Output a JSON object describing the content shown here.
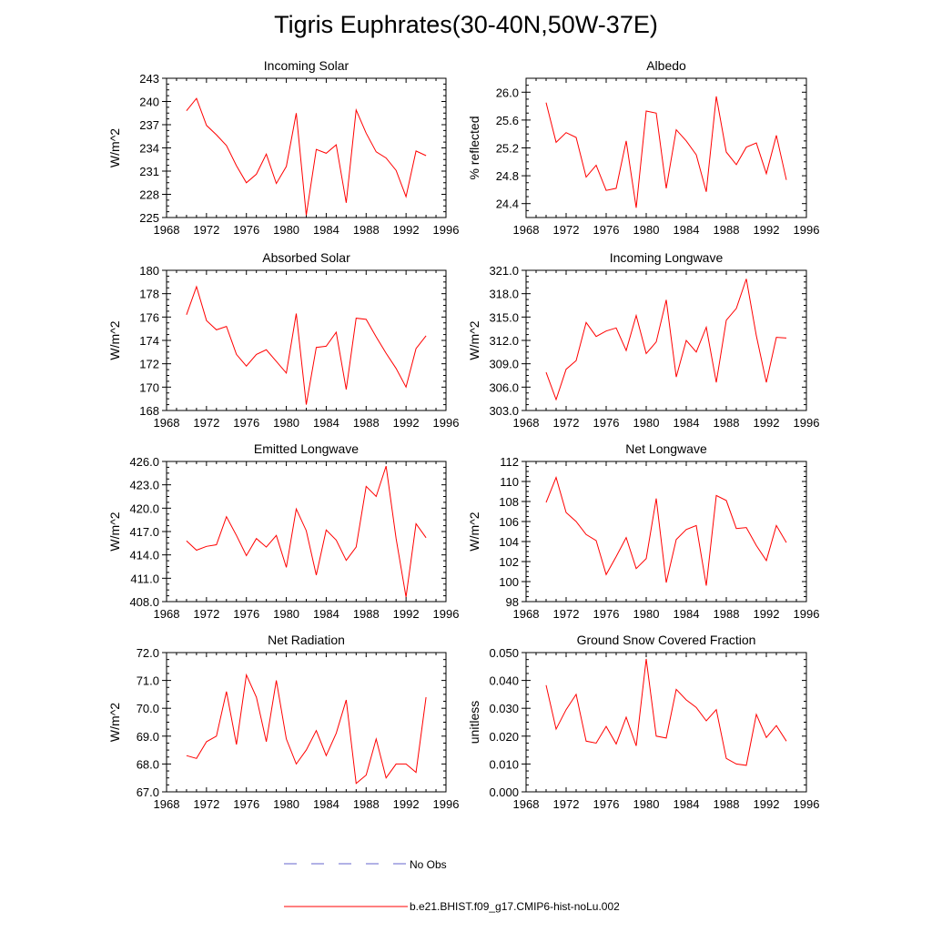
{
  "title": "Tigris Euphrates(30-40N,50W-37E)",
  "chart_data": [
    {
      "type": "line",
      "title": "Incoming Solar",
      "ylabel": "W/m^2",
      "xlabel": "",
      "xlim": [
        1968,
        1996
      ],
      "xticks": [
        "1968",
        "1972",
        "1976",
        "1980",
        "1984",
        "1988",
        "1992",
        "1996"
      ],
      "ylim": [
        225,
        243
      ],
      "yticks": [
        "225",
        "228",
        "231",
        "234",
        "237",
        "240",
        "243"
      ],
      "series": [
        {
          "name": "b.e21.BHIST.f09_g17.CMIP6-hist-noLu.002",
          "color": "#ff0000",
          "x": [
            1970,
            1971,
            1972,
            1973,
            1974,
            1975,
            1976,
            1977,
            1978,
            1979,
            1980,
            1981,
            1982,
            1983,
            1984,
            1985,
            1986,
            1987,
            1988,
            1989,
            1990,
            1991,
            1992,
            1993,
            1994
          ],
          "y": [
            238.8,
            240.4,
            236.9,
            235.7,
            234.3,
            231.7,
            229.5,
            230.6,
            233.2,
            229.4,
            231.6,
            238.5,
            225.3,
            233.8,
            233.3,
            234.4,
            226.9,
            238.9,
            235.9,
            233.5,
            232.7,
            231.1,
            227.7,
            233.6,
            233.0
          ]
        }
      ]
    },
    {
      "type": "line",
      "title": "Albedo",
      "ylabel": "% reflected",
      "xlabel": "",
      "xlim": [
        1968,
        1996
      ],
      "xticks": [
        "1968",
        "1972",
        "1976",
        "1980",
        "1984",
        "1988",
        "1992",
        "1996"
      ],
      "ylim": [
        24.2,
        26.2
      ],
      "yticks": [
        "24.4",
        "24.8",
        "25.2",
        "25.6",
        "26.0"
      ],
      "series": [
        {
          "name": "b.e21.BHIST.f09_g17.CMIP6-hist-noLu.002",
          "color": "#ff0000",
          "x": [
            1970,
            1971,
            1972,
            1973,
            1974,
            1975,
            1976,
            1977,
            1978,
            1979,
            1980,
            1981,
            1982,
            1983,
            1984,
            1985,
            1986,
            1987,
            1988,
            1989,
            1990,
            1991,
            1992,
            1993,
            1994
          ],
          "y": [
            25.85,
            25.28,
            25.42,
            25.35,
            24.78,
            24.95,
            24.59,
            24.62,
            25.3,
            24.34,
            25.73,
            25.7,
            24.62,
            25.46,
            25.3,
            25.1,
            24.57,
            25.94,
            25.14,
            24.96,
            25.21,
            25.27,
            24.83,
            25.38,
            24.74
          ]
        }
      ]
    },
    {
      "type": "line",
      "title": "Absorbed Solar",
      "ylabel": "W/m^2",
      "xlabel": "",
      "xlim": [
        1968,
        1996
      ],
      "xticks": [
        "1968",
        "1972",
        "1976",
        "1980",
        "1984",
        "1988",
        "1992",
        "1996"
      ],
      "ylim": [
        168,
        180
      ],
      "yticks": [
        "168",
        "170",
        "172",
        "174",
        "176",
        "178",
        "180"
      ],
      "series": [
        {
          "name": "b.e21.BHIST.f09_g17.CMIP6-hist-noLu.002",
          "color": "#ff0000",
          "x": [
            1970,
            1971,
            1972,
            1973,
            1974,
            1975,
            1976,
            1977,
            1978,
            1979,
            1980,
            1981,
            1982,
            1983,
            1984,
            1985,
            1986,
            1987,
            1988,
            1989,
            1990,
            1991,
            1992,
            1993,
            1994
          ],
          "y": [
            176.2,
            178.6,
            175.7,
            174.9,
            175.2,
            172.8,
            171.8,
            172.8,
            173.2,
            172.2,
            171.2,
            176.3,
            168.5,
            173.4,
            173.5,
            174.7,
            169.8,
            175.9,
            175.8,
            174.3,
            172.9,
            171.6,
            170.0,
            173.3,
            174.4
          ]
        }
      ]
    },
    {
      "type": "line",
      "title": "Incoming Longwave",
      "ylabel": "W/m^2",
      "xlabel": "",
      "xlim": [
        1968,
        1996
      ],
      "xticks": [
        "1968",
        "1972",
        "1976",
        "1980",
        "1984",
        "1988",
        "1992",
        "1996"
      ],
      "ylim": [
        303.0,
        321.0
      ],
      "yticks": [
        "303.0",
        "306.0",
        "309.0",
        "312.0",
        "315.0",
        "318.0",
        "321.0"
      ],
      "series": [
        {
          "name": "b.e21.BHIST.f09_g17.CMIP6-hist-noLu.002",
          "color": "#ff0000",
          "x": [
            1970,
            1971,
            1972,
            1973,
            1974,
            1975,
            1976,
            1977,
            1978,
            1979,
            1980,
            1981,
            1982,
            1983,
            1984,
            1985,
            1986,
            1987,
            1988,
            1989,
            1990,
            1991,
            1992,
            1993,
            1994
          ],
          "y": [
            307.9,
            304.4,
            308.3,
            309.4,
            314.3,
            312.5,
            313.2,
            313.6,
            310.7,
            315.2,
            310.3,
            311.8,
            317.2,
            307.3,
            312.0,
            310.5,
            313.7,
            306.6,
            314.6,
            316.1,
            319.9,
            312.6,
            306.6,
            312.4,
            312.3
          ]
        }
      ]
    },
    {
      "type": "line",
      "title": "Emitted Longwave",
      "ylabel": "W/m^2",
      "xlabel": "",
      "xlim": [
        1968,
        1996
      ],
      "xticks": [
        "1968",
        "1972",
        "1976",
        "1980",
        "1984",
        "1988",
        "1992",
        "1996"
      ],
      "ylim": [
        408.0,
        426.0
      ],
      "yticks": [
        "408.0",
        "411.0",
        "414.0",
        "417.0",
        "420.0",
        "423.0",
        "426.0"
      ],
      "series": [
        {
          "name": "b.e21.BHIST.f09_g17.CMIP6-hist-noLu.002",
          "color": "#ff0000",
          "x": [
            1970,
            1971,
            1972,
            1973,
            1974,
            1975,
            1976,
            1977,
            1978,
            1979,
            1980,
            1981,
            1982,
            1983,
            1984,
            1985,
            1986,
            1987,
            1988,
            1989,
            1990,
            1991,
            1992,
            1993,
            1994
          ],
          "y": [
            415.8,
            414.6,
            415.1,
            415.3,
            418.9,
            416.5,
            413.9,
            416.1,
            415.0,
            416.5,
            412.4,
            419.9,
            417.1,
            411.4,
            417.2,
            415.9,
            413.3,
            415.0,
            422.8,
            421.5,
            425.4,
            416.1,
            408.6,
            418.0,
            416.2
          ]
        }
      ]
    },
    {
      "type": "line",
      "title": "Net Longwave",
      "ylabel": "W/m^2",
      "xlabel": "",
      "xlim": [
        1968,
        1996
      ],
      "xticks": [
        "1968",
        "1972",
        "1976",
        "1980",
        "1984",
        "1988",
        "1992",
        "1996"
      ],
      "ylim": [
        98,
        112
      ],
      "yticks": [
        "98",
        "100",
        "102",
        "104",
        "106",
        "108",
        "110",
        "112"
      ],
      "series": [
        {
          "name": "b.e21.BHIST.f09_g17.CMIP6-hist-noLu.002",
          "color": "#ff0000",
          "x": [
            1970,
            1971,
            1972,
            1973,
            1974,
            1975,
            1976,
            1977,
            1978,
            1979,
            1980,
            1981,
            1982,
            1983,
            1984,
            1985,
            1986,
            1987,
            1988,
            1989,
            1990,
            1991,
            1992,
            1993,
            1994
          ],
          "y": [
            107.9,
            110.4,
            106.9,
            106.0,
            104.7,
            104.1,
            100.7,
            102.5,
            104.4,
            101.3,
            102.3,
            108.3,
            99.9,
            104.2,
            105.2,
            105.6,
            99.6,
            108.6,
            108.1,
            105.3,
            105.4,
            103.6,
            102.1,
            105.6,
            103.9
          ]
        }
      ]
    },
    {
      "type": "line",
      "title": "Net Radiation",
      "ylabel": "W/m^2",
      "xlabel": "",
      "xlim": [
        1968,
        1996
      ],
      "xticks": [
        "1968",
        "1972",
        "1976",
        "1980",
        "1984",
        "1988",
        "1992",
        "1996"
      ],
      "ylim": [
        67.0,
        72.0
      ],
      "yticks": [
        "67.0",
        "68.0",
        "69.0",
        "70.0",
        "71.0",
        "72.0"
      ],
      "series": [
        {
          "name": "b.e21.BHIST.f09_g17.CMIP6-hist-noLu.002",
          "color": "#ff0000",
          "x": [
            1970,
            1971,
            1972,
            1973,
            1974,
            1975,
            1976,
            1977,
            1978,
            1979,
            1980,
            1981,
            1982,
            1983,
            1984,
            1985,
            1986,
            1987,
            1988,
            1989,
            1990,
            1991,
            1992,
            1993,
            1994
          ],
          "y": [
            68.3,
            68.2,
            68.8,
            69.0,
            70.6,
            68.7,
            71.2,
            70.4,
            68.8,
            71.0,
            68.9,
            68.0,
            68.5,
            69.2,
            68.3,
            69.1,
            70.3,
            67.3,
            67.6,
            68.9,
            67.5,
            68.0,
            68.0,
            67.7,
            70.4
          ]
        }
      ]
    },
    {
      "type": "line",
      "title": "Ground Snow Covered Fraction",
      "ylabel": "unitless",
      "xlabel": "",
      "xlim": [
        1968,
        1996
      ],
      "xticks": [
        "1968",
        "1972",
        "1976",
        "1980",
        "1984",
        "1988",
        "1992",
        "1996"
      ],
      "ylim": [
        0.0,
        0.05
      ],
      "yticks": [
        "0.000",
        "0.010",
        "0.020",
        "0.030",
        "0.040",
        "0.050"
      ],
      "series": [
        {
          "name": "b.e21.BHIST.f09_g17.CMIP6-hist-noLu.002",
          "color": "#ff0000",
          "x": [
            1970,
            1971,
            1972,
            1973,
            1974,
            1975,
            1976,
            1977,
            1978,
            1979,
            1980,
            1981,
            1982,
            1983,
            1984,
            1985,
            1986,
            1987,
            1988,
            1989,
            1990,
            1991,
            1992,
            1993,
            1994
          ],
          "y": [
            0.0383,
            0.0225,
            0.0295,
            0.035,
            0.0182,
            0.0175,
            0.0235,
            0.0172,
            0.0268,
            0.0165,
            0.0477,
            0.02,
            0.0193,
            0.0368,
            0.033,
            0.0303,
            0.0255,
            0.0295,
            0.012,
            0.01,
            0.0095,
            0.0278,
            0.0195,
            0.0238,
            0.0182
          ]
        }
      ]
    }
  ],
  "legend": [
    {
      "label": "No Obs",
      "style": "dashed",
      "color": "#6666cc"
    },
    {
      "label": "b.e21.BHIST.f09_g17.CMIP6-hist-noLu.002",
      "style": "solid",
      "color": "#ff0000"
    }
  ]
}
